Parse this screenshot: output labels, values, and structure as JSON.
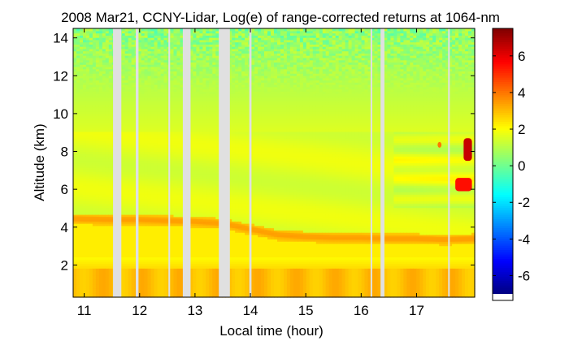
{
  "chart_data": {
    "type": "heatmap",
    "title": "2008 Mar21, CCNY-Lidar, Log(e) of range-corrected returns at 1064-nm",
    "xlabel": "Local time (hour)",
    "ylabel": "Altitude (km)",
    "xlim": [
      10.8,
      18.05
    ],
    "ylim": [
      0.3,
      14.5
    ],
    "xticks": [
      11,
      12,
      13,
      14,
      15,
      16,
      17
    ],
    "yticks": [
      2,
      4,
      6,
      8,
      10,
      12,
      14
    ],
    "colorbar": {
      "range": [
        -7,
        7.5
      ],
      "ticks": [
        -6,
        -4,
        -2,
        0,
        2,
        4,
        6
      ],
      "colormap": [
        "#00008f",
        "#0000ff",
        "#00ffff",
        "#ffff00",
        "#ff0000",
        "#800000"
      ]
    },
    "data_gaps_hour": [
      [
        11.52,
        11.67
      ],
      [
        11.93,
        11.98
      ],
      [
        12.52,
        12.55
      ],
      [
        12.78,
        12.92
      ],
      [
        13.43,
        13.63
      ],
      [
        13.98,
        14.02
      ],
      [
        16.17,
        16.2
      ],
      [
        16.35,
        16.42
      ],
      [
        17.57,
        17.6
      ]
    ],
    "features": {
      "aerosol_layer_top_km": [
        [
          10.8,
          4.45
        ],
        [
          11.5,
          4.4
        ],
        [
          12.0,
          4.4
        ],
        [
          12.5,
          4.35
        ],
        [
          13.0,
          4.3
        ],
        [
          13.5,
          4.2
        ],
        [
          14.0,
          3.9
        ],
        [
          14.5,
          3.6
        ],
        [
          15.0,
          3.5
        ],
        [
          15.5,
          3.45
        ],
        [
          16.0,
          3.45
        ],
        [
          16.5,
          3.4
        ],
        [
          17.0,
          3.4
        ],
        [
          17.5,
          3.35
        ],
        [
          18.05,
          3.4
        ]
      ],
      "boundary_layer_top_km": 1.8,
      "clouds": [
        {
          "time_hour": [
            17.85,
            18.0
          ],
          "altitude_km": [
            7.5,
            8.7
          ],
          "value": 6.5
        },
        {
          "time_hour": [
            17.7,
            18.0
          ],
          "altitude_km": [
            5.9,
            6.6
          ],
          "value": 5.5
        },
        {
          "time_hour": [
            17.38,
            17.45
          ],
          "altitude_km": [
            8.2,
            8.5
          ],
          "value": 4.0
        }
      ],
      "free_troposphere_value": 1.6,
      "high_altitude_noise_above_km": 11
    }
  }
}
